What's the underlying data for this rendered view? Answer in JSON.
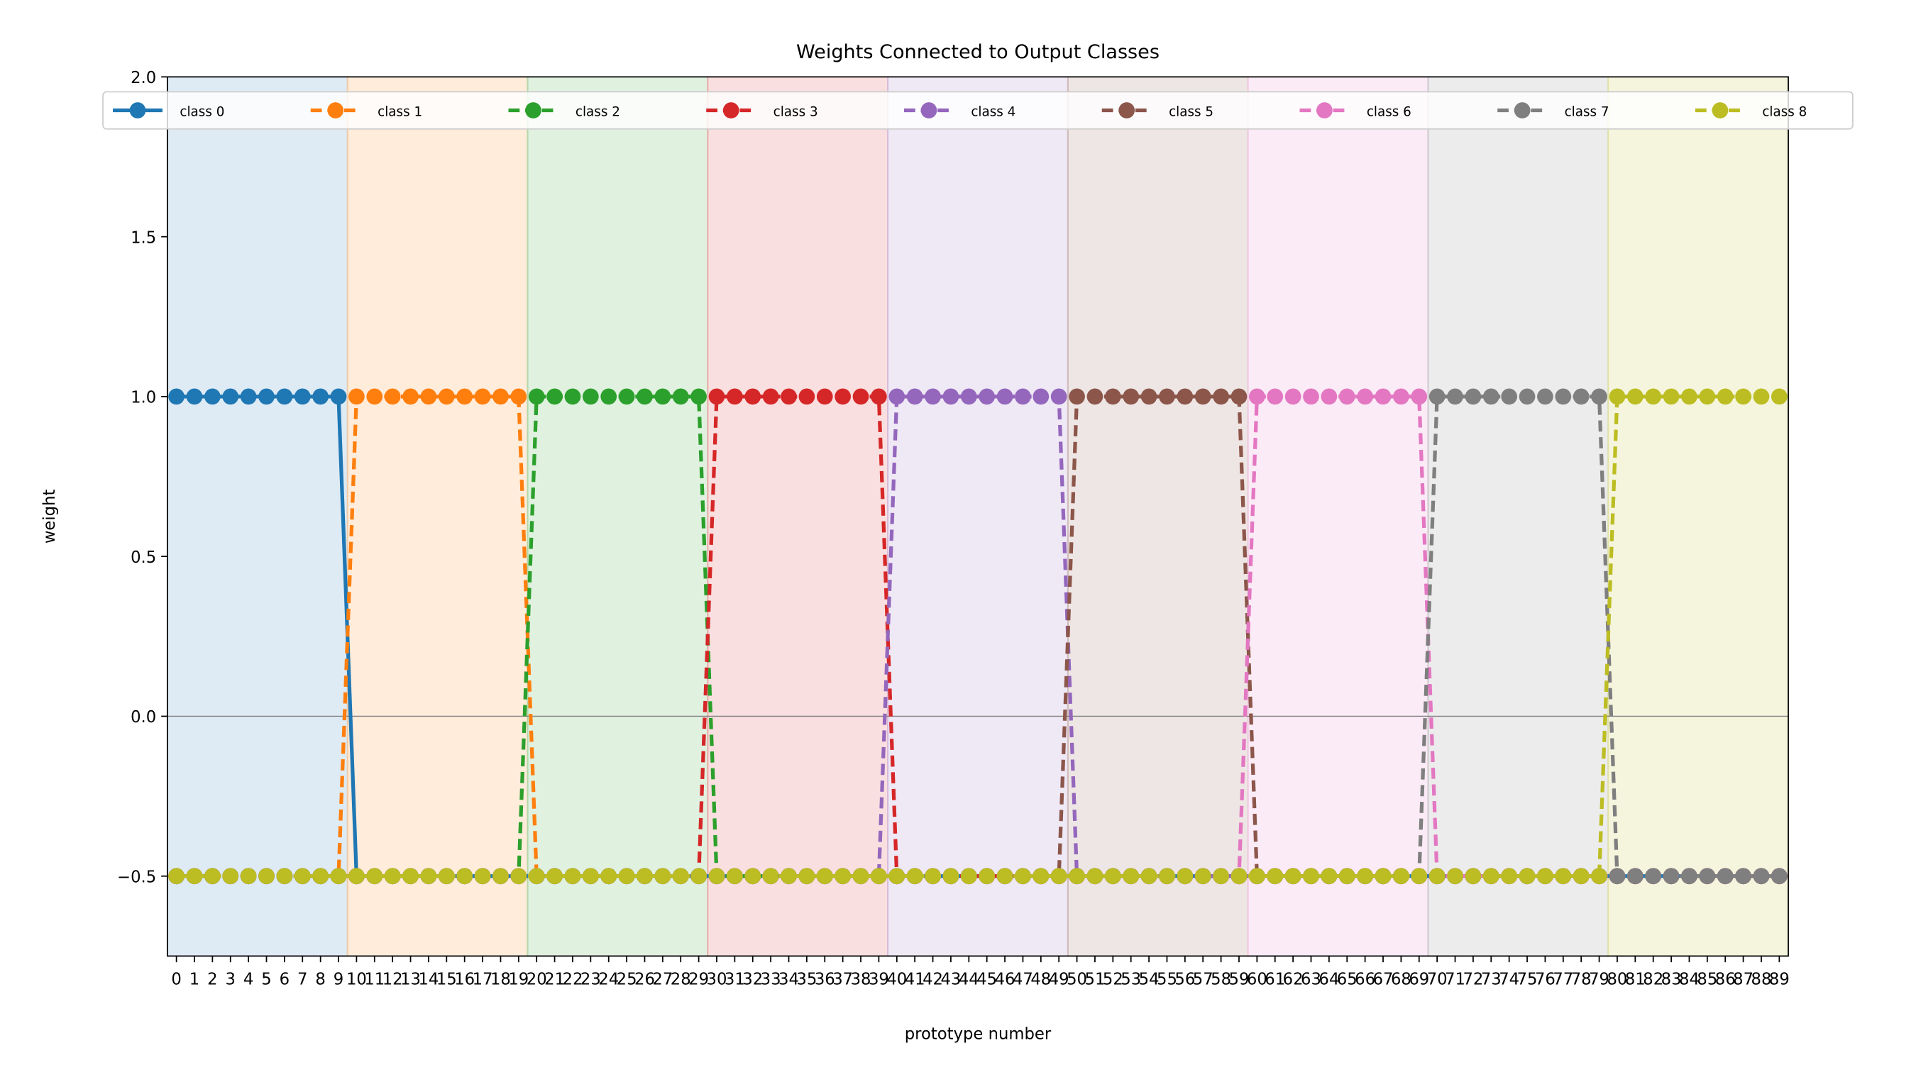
{
  "chart_data": {
    "type": "line",
    "title": "Weights Connected to Output Classes",
    "xlabel": "prototype number",
    "ylabel": "weight",
    "ylim": [
      -0.75,
      2.0
    ],
    "xlim": [
      -0.5,
      89.5
    ],
    "yticks": [
      -0.5,
      0.0,
      0.5,
      1.0,
      1.5,
      2.0
    ],
    "ytick_labels": [
      "−0.5",
      "0.0",
      "0.5",
      "1.0",
      "1.5",
      "2.0"
    ],
    "xticks": [
      0,
      1,
      2,
      3,
      4,
      5,
      6,
      7,
      8,
      9,
      10,
      11,
      12,
      13,
      14,
      15,
      16,
      17,
      18,
      19,
      20,
      21,
      22,
      23,
      24,
      25,
      26,
      27,
      28,
      29,
      30,
      31,
      32,
      33,
      34,
      35,
      36,
      37,
      38,
      39,
      40,
      41,
      42,
      43,
      44,
      45,
      46,
      47,
      48,
      49,
      50,
      51,
      52,
      53,
      54,
      55,
      56,
      57,
      58,
      59,
      60,
      61,
      62,
      63,
      64,
      65,
      66,
      67,
      68,
      69,
      70,
      71,
      72,
      73,
      74,
      75,
      76,
      77,
      78,
      79,
      80,
      81,
      82,
      83,
      84,
      85,
      86,
      87,
      88,
      89
    ],
    "zero_line": true,
    "grid": false,
    "legend_position": "top",
    "prototypes_per_class": 10,
    "high_value": 1.0,
    "low_value": -0.5,
    "series": [
      {
        "name": "class 0",
        "color": "#1f77b4",
        "high_range": [
          0,
          9
        ]
      },
      {
        "name": "class 1",
        "color": "#ff7f0e",
        "high_range": [
          10,
          19
        ]
      },
      {
        "name": "class 2",
        "color": "#2ca02c",
        "high_range": [
          20,
          29
        ]
      },
      {
        "name": "class 3",
        "color": "#d62728",
        "high_range": [
          30,
          39
        ]
      },
      {
        "name": "class 4",
        "color": "#9467bd",
        "high_range": [
          40,
          49
        ]
      },
      {
        "name": "class 5",
        "color": "#8c564b",
        "high_range": [
          50,
          59
        ]
      },
      {
        "name": "class 6",
        "color": "#e377c2",
        "high_range": [
          60,
          69
        ]
      },
      {
        "name": "class 7",
        "color": "#7f7f7f",
        "high_range": [
          70,
          79
        ]
      },
      {
        "name": "class 8",
        "color": "#bcbd22",
        "high_range": [
          80,
          89
        ]
      }
    ]
  }
}
